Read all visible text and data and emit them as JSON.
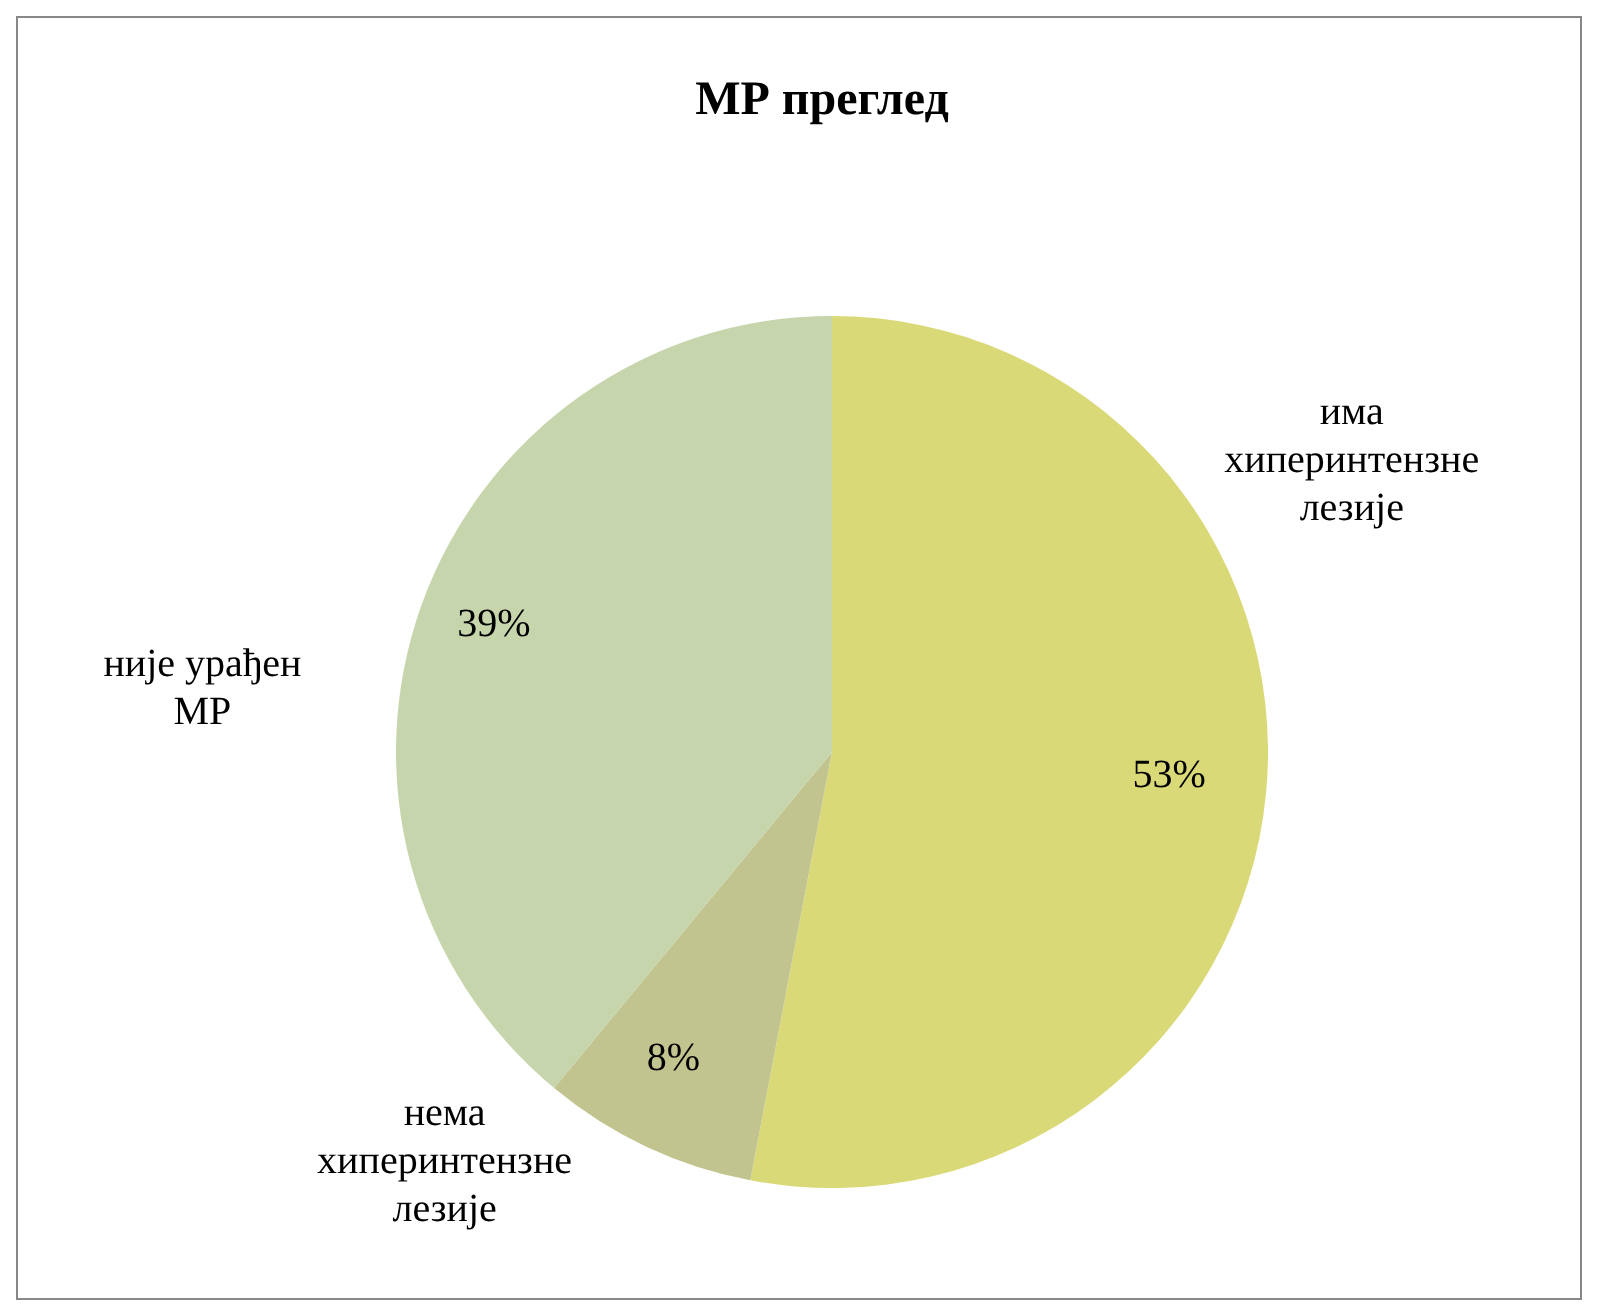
{
  "chart_data": {
    "type": "pie",
    "title": "МР преглед",
    "categories": [
      "има хиперинтензне лезије",
      "нема хиперинтензне лезије",
      "није урађен МР"
    ],
    "values": [
      53,
      8,
      39
    ],
    "colors": [
      "#dad978",
      "#c2c48f",
      "#c7d5ac"
    ],
    "value_labels": [
      "53%",
      "8%",
      "39%"
    ]
  }
}
